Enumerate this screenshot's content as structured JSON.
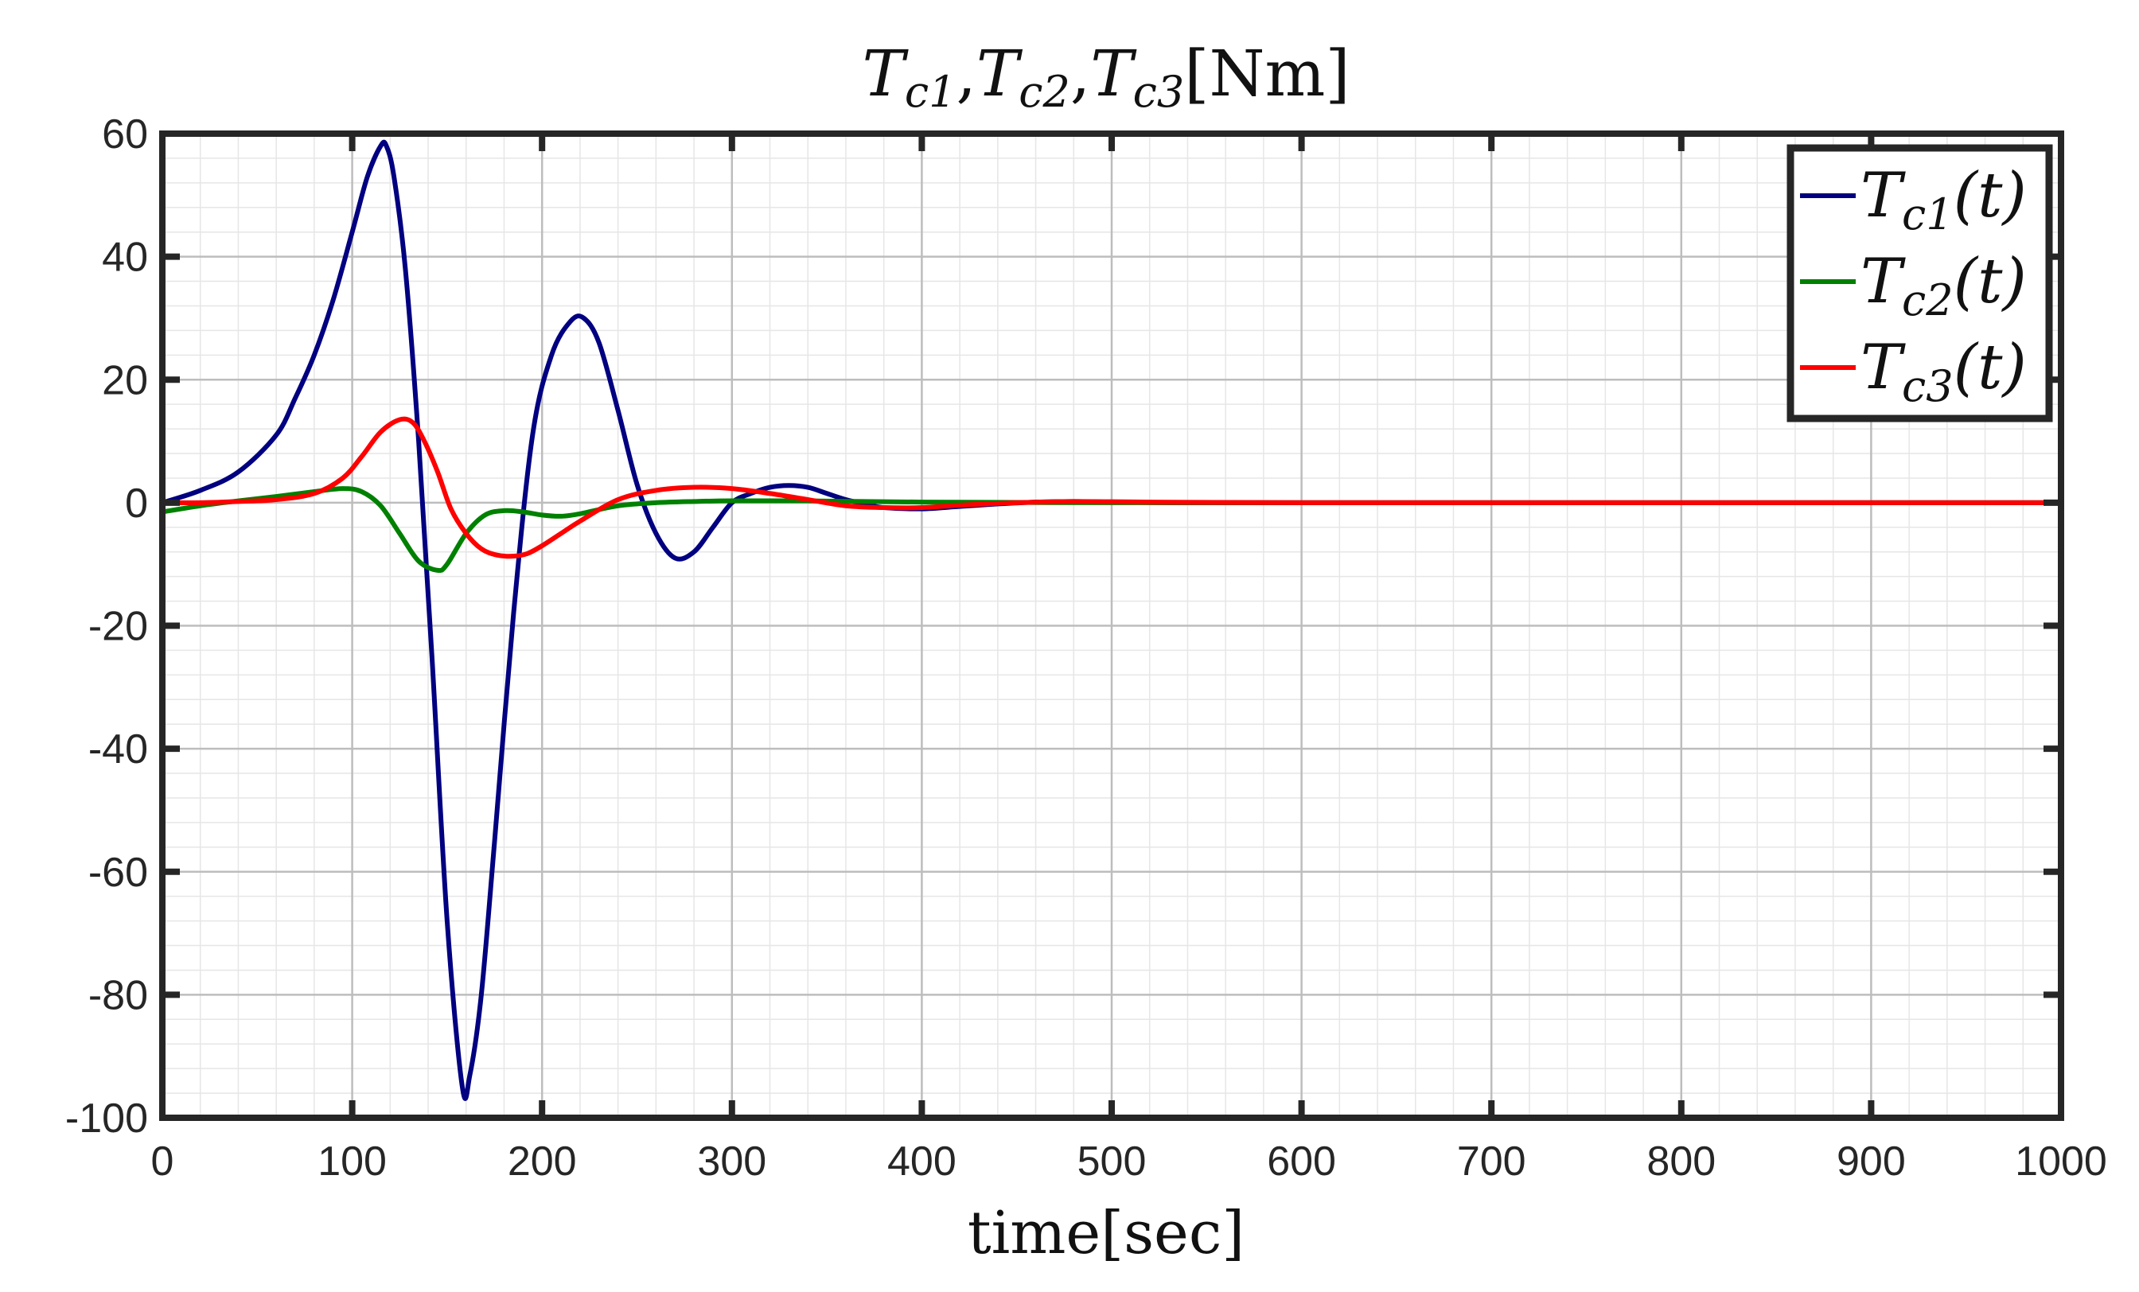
{
  "chart_data": {
    "type": "line",
    "title": {
      "var1": "T",
      "sub1": "c1",
      "var2": "T",
      "sub2": "c2",
      "var3": "T",
      "sub3": "c3",
      "unit": "[Nm]"
    },
    "xlabel": "time[sec]",
    "xlim": [
      0,
      1000
    ],
    "ylim": [
      -100,
      60
    ],
    "xticks": [
      0,
      100,
      200,
      300,
      400,
      500,
      600,
      700,
      800,
      900,
      1000
    ],
    "yticks": [
      -100,
      -80,
      -60,
      -40,
      -20,
      0,
      20,
      40,
      60
    ],
    "grid": true,
    "minor_grid": true,
    "legend_position": "top-right",
    "series": [
      {
        "name": "T_c1(t)",
        "legend": {
          "var": "T",
          "sub": "c1",
          "arg": "(t)"
        },
        "color": "#000080",
        "x": [
          0,
          20,
          40,
          60,
          70,
          80,
          90,
          100,
          108,
          115,
          118,
          122,
          128,
          135,
          142,
          150,
          158,
          162,
          168,
          175,
          185,
          195,
          205,
          215,
          222,
          230,
          240,
          250,
          260,
          270,
          280,
          290,
          300,
          310,
          320,
          330,
          340,
          350,
          360,
          370,
          380,
          400,
          420,
          440,
          460,
          480,
          500,
          530,
          560,
          600,
          700,
          800,
          900,
          1000
        ],
        "y": [
          0,
          2,
          5,
          11,
          17,
          24,
          33,
          44,
          53,
          58,
          58,
          53,
          38,
          10,
          -25,
          -68,
          -95,
          -93,
          -80,
          -55,
          -18,
          11,
          24,
          29.5,
          30,
          26,
          15,
          3,
          -5,
          -9,
          -8,
          -4,
          0,
          1.5,
          2.5,
          2.8,
          2.5,
          1.5,
          0.5,
          -0.2,
          -0.8,
          -1,
          -0.6,
          -0.2,
          0.1,
          0.2,
          0.1,
          0,
          0,
          0,
          0,
          0,
          0,
          0
        ]
      },
      {
        "name": "T_c2(t)",
        "legend": {
          "var": "T",
          "sub": "c2",
          "arg": "(t)"
        },
        "color": "#008000",
        "x": [
          0,
          20,
          40,
          60,
          80,
          95,
          105,
          115,
          125,
          135,
          145,
          150,
          160,
          170,
          180,
          190,
          200,
          210,
          220,
          240,
          260,
          280,
          300,
          340,
          400,
          500,
          600,
          800,
          1000
        ],
        "y": [
          -1.5,
          -0.5,
          0.3,
          1,
          1.8,
          2.3,
          1.8,
          -0.5,
          -5,
          -9.5,
          -11,
          -10,
          -5,
          -2,
          -1.3,
          -1.5,
          -2,
          -2.2,
          -1.8,
          -0.5,
          0,
          0.2,
          0.3,
          0.3,
          0.1,
          0,
          0,
          0,
          0
        ]
      },
      {
        "name": "T_c3(t)",
        "legend": {
          "var": "T",
          "sub": "c3",
          "arg": "(t)"
        },
        "color": "#ff0000",
        "x": [
          0,
          20,
          40,
          60,
          80,
          95,
          105,
          115,
          125,
          132,
          138,
          145,
          152,
          160,
          168,
          176,
          184,
          192,
          200,
          210,
          220,
          240,
          260,
          280,
          300,
          320,
          340,
          360,
          380,
          400,
          420,
          450,
          480,
          520,
          600,
          800,
          1000
        ],
        "y": [
          0,
          0,
          0.2,
          0.5,
          1.5,
          4,
          7.5,
          11.5,
          13.5,
          13,
          10,
          5,
          -1,
          -5,
          -7.5,
          -8.5,
          -8.7,
          -8.3,
          -7,
          -5,
          -3,
          0.5,
          2,
          2.5,
          2.3,
          1.5,
          0.5,
          -0.5,
          -0.8,
          -0.8,
          -0.4,
          0,
          0.2,
          0.1,
          0,
          0,
          0
        ]
      }
    ]
  }
}
